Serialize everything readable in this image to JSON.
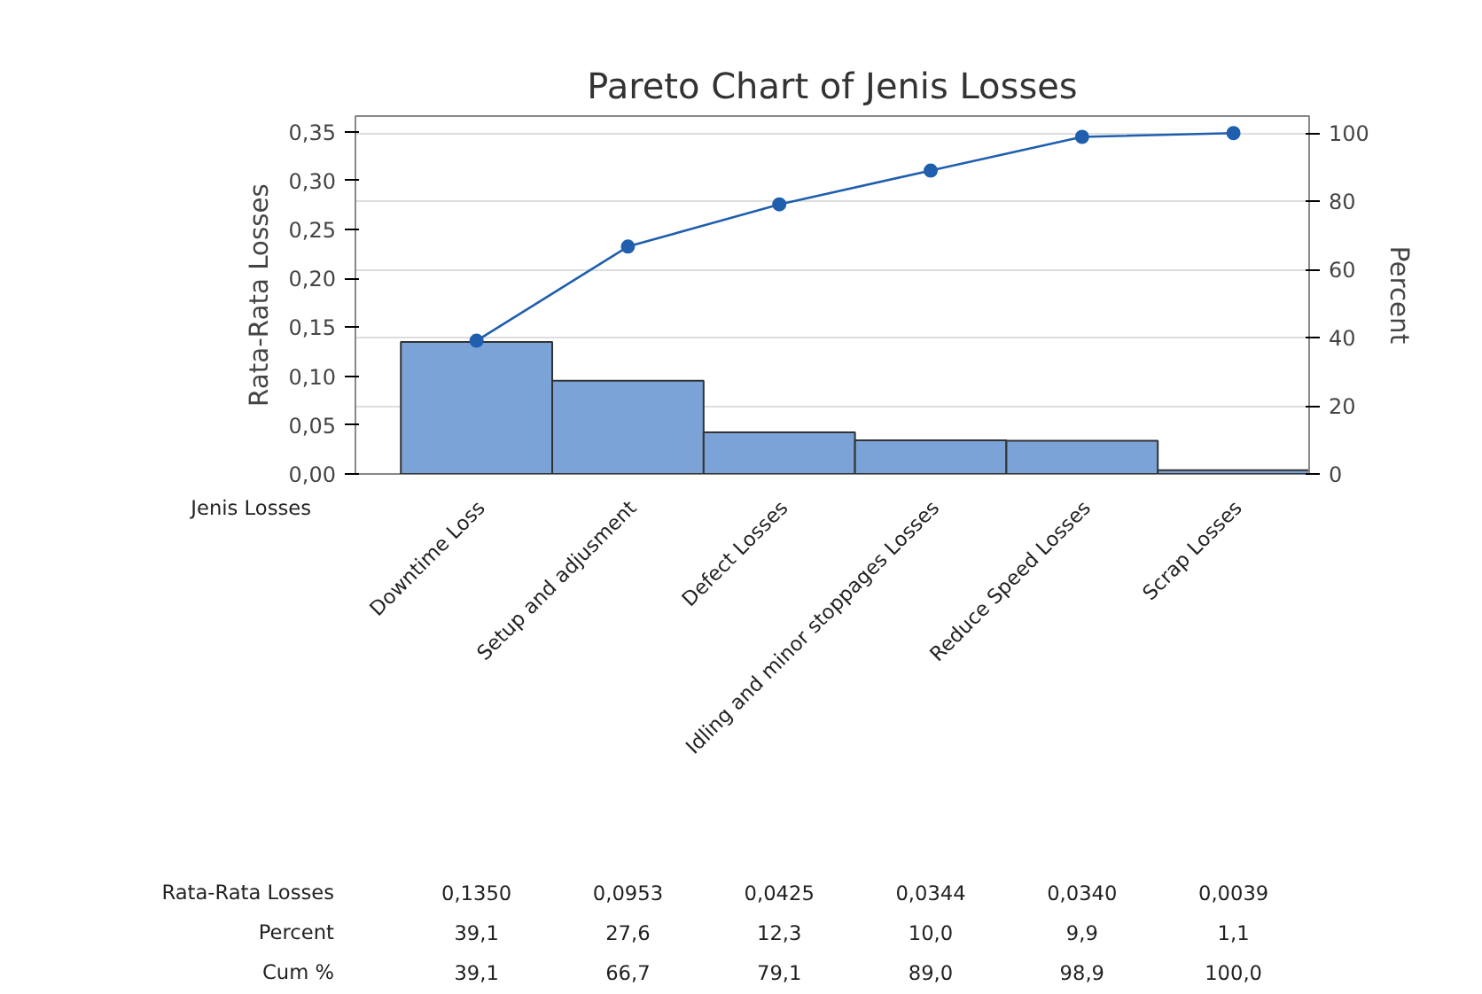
{
  "chart_data": {
    "type": "bar",
    "title": "Pareto Chart of Jenis Losses",
    "xlabel": "Jenis Losses",
    "ylabel": "Rata-Rata Losses",
    "y2label": "Percent",
    "categories": [
      "Downtime Loss",
      "Setup and adjusment",
      "Defect Losses",
      "Idling and minor stoppages Losses",
      "Reduce Speed Losses",
      "Scrap Losses"
    ],
    "series": [
      {
        "color": "#7ba3d8",
        "values": [
          0.135,
          0.0953,
          0.0425,
          0.0344,
          0.034,
          0.0039
        ],
        "value_labels": [
          "0,1350",
          "0,0953",
          "0,0425",
          "0,0344",
          "0,0340",
          "0,0039"
        ]
      },
      {
        "type": "line",
        "axis": "y2",
        "color": "#1f5fae",
        "marker": "circle",
        "values": [
          39.1,
          66.7,
          79.1,
          89.0,
          98.9,
          100.0
        ],
        "value_labels": [
          "39,1",
          "66,7",
          "79,1",
          "89,0",
          "98,9",
          "100,0"
        ]
      }
    ],
    "annotations": [
      "Rata-Rata Losses",
      "Percent",
      "Cum %",
      "39,1",
      "27,6",
      "12,3",
      "10,0",
      "9,9",
      "1,1"
    ],
    "ylim": [
      0,
      0.366
    ],
    "yticks": [
      {
        "value": 0,
        "label": "0,00"
      },
      {
        "value": 0.05,
        "label": "0,05"
      },
      {
        "value": 0.1,
        "label": "0,10"
      },
      {
        "value": 0.15,
        "label": "0,15"
      },
      {
        "value": 0.2,
        "label": "0,20"
      },
      {
        "value": 0.25,
        "label": "0,25"
      },
      {
        "value": 0.3,
        "label": "0,30"
      },
      {
        "value": 0.35,
        "label": "0,35"
      }
    ],
    "y2lim": [
      0,
      105
    ],
    "y2ticks": [
      0,
      20,
      40,
      60,
      80,
      100
    ],
    "grid": "y2"
  }
}
